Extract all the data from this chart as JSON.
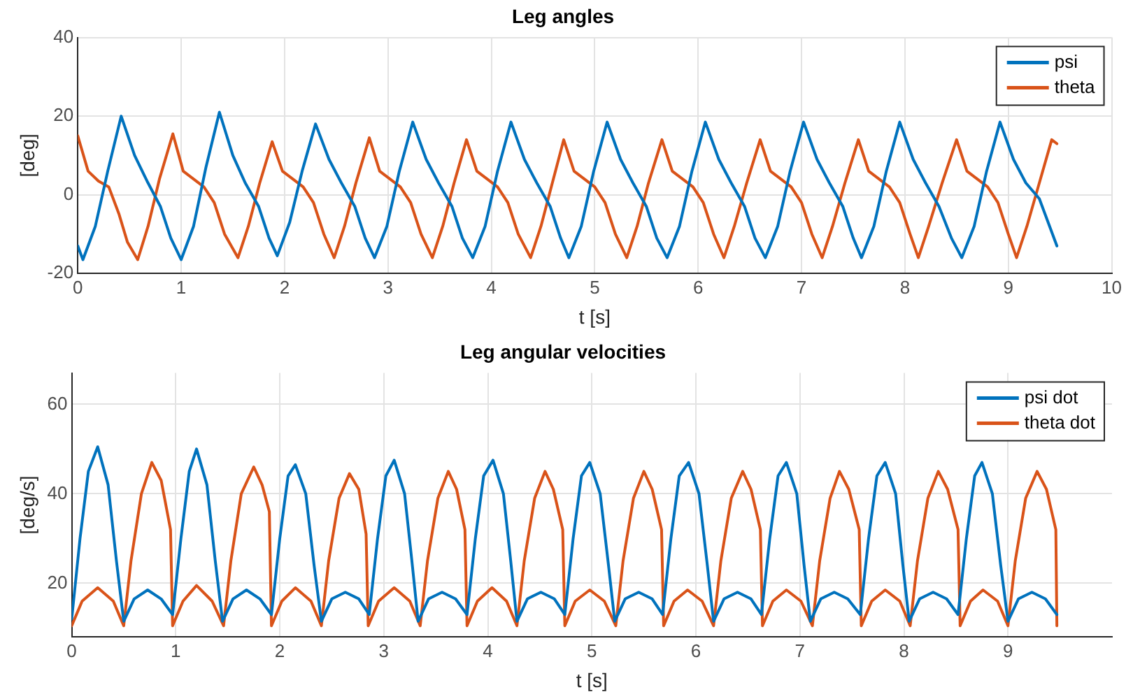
{
  "chart_data": [
    {
      "type": "line",
      "title": "Leg angles",
      "xlabel": "t [s]",
      "ylabel": "[deg]",
      "xlim": [
        0,
        10
      ],
      "xticks": [
        0,
        1,
        2,
        3,
        4,
        5,
        6,
        7,
        8,
        9,
        10
      ],
      "ylim": [
        -20,
        40
      ],
      "yticks": [
        -20,
        0,
        20,
        40
      ],
      "grid": true,
      "legend": "top right",
      "series": [
        {
          "name": "psi",
          "color": "#0072bd",
          "x": [
            0,
            0.05,
            0.17,
            0.29,
            0.42,
            0.55,
            0.67,
            0.8,
            0.9,
            1.0,
            1.12,
            1.24,
            1.37,
            1.5,
            1.62,
            1.75,
            1.85,
            1.93,
            2.05,
            2.17,
            2.3,
            2.43,
            2.55,
            2.68,
            2.78,
            2.87,
            2.99,
            3.11,
            3.24,
            3.37,
            3.49,
            3.62,
            3.72,
            3.82,
            3.94,
            4.06,
            4.19,
            4.32,
            4.44,
            4.57,
            4.67,
            4.75,
            4.87,
            4.99,
            5.12,
            5.25,
            5.37,
            5.5,
            5.6,
            5.7,
            5.82,
            5.94,
            6.07,
            6.2,
            6.32,
            6.45,
            6.55,
            6.65,
            6.77,
            6.89,
            7.02,
            7.15,
            7.27,
            7.4,
            7.5,
            7.58,
            7.7,
            7.82,
            7.95,
            8.08,
            8.2,
            8.33,
            8.45,
            8.55,
            8.67,
            8.79,
            8.92,
            9.05,
            9.17,
            9.3,
            9.47
          ],
          "values": [
            -13,
            -16.5,
            -8,
            6,
            20,
            10,
            3.5,
            -3,
            -11,
            -16.5,
            -8,
            7,
            21,
            10,
            3,
            -3,
            -11,
            -15.5,
            -7,
            6,
            18,
            9,
            3,
            -3,
            -11,
            -16,
            -8,
            6,
            18.5,
            9,
            3,
            -3,
            -11,
            -16,
            -8,
            6,
            18.5,
            9,
            3,
            -3,
            -11,
            -16,
            -8,
            6,
            18.5,
            9,
            3,
            -3,
            -11,
            -16,
            -8,
            6,
            18.5,
            9,
            3,
            -3,
            -11,
            -16,
            -8,
            6,
            18.5,
            9,
            3,
            -3,
            -11,
            -16,
            -8,
            6,
            18.5,
            9,
            3,
            -3,
            -11,
            -16,
            -8,
            6,
            18.5,
            9,
            3,
            -1,
            -13
          ]
        },
        {
          "name": "theta",
          "color": "#d95319",
          "x": [
            0,
            0.1,
            0.2,
            0.3,
            0.4,
            0.48,
            0.58,
            0.68,
            0.79,
            0.92,
            1.02,
            1.12,
            1.22,
            1.32,
            1.42,
            1.55,
            1.65,
            1.76,
            1.88,
            1.98,
            2.08,
            2.18,
            2.28,
            2.38,
            2.48,
            2.58,
            2.69,
            2.82,
            2.92,
            3.02,
            3.12,
            3.22,
            3.32,
            3.43,
            3.53,
            3.64,
            3.76,
            3.86,
            3.96,
            4.06,
            4.16,
            4.26,
            4.38,
            4.48,
            4.59,
            4.7,
            4.8,
            4.9,
            5.0,
            5.1,
            5.2,
            5.31,
            5.41,
            5.52,
            5.65,
            5.75,
            5.85,
            5.95,
            6.05,
            6.15,
            6.25,
            6.35,
            6.47,
            6.6,
            6.7,
            6.8,
            6.9,
            7.0,
            7.1,
            7.2,
            7.3,
            7.42,
            7.55,
            7.65,
            7.75,
            7.85,
            7.95,
            8.05,
            8.13,
            8.23,
            8.36,
            8.5,
            8.6,
            8.7,
            8.8,
            8.9,
            9.0,
            9.08,
            9.18,
            9.3,
            9.42,
            9.47
          ],
          "values": [
            15,
            6,
            3.5,
            2,
            -5,
            -12,
            -16.5,
            -8,
            4,
            15.5,
            6,
            4,
            2,
            -2,
            -10,
            -16,
            -8,
            3,
            13.5,
            6,
            4,
            2,
            -2,
            -10,
            -16,
            -8,
            3,
            14.5,
            6,
            4,
            2,
            -2,
            -10,
            -16,
            -8,
            3,
            14,
            6,
            4,
            2,
            -2,
            -10,
            -16,
            -8,
            3,
            14,
            6,
            4,
            2,
            -2,
            -10,
            -16,
            -8,
            3,
            14,
            6,
            4,
            2,
            -2,
            -10,
            -16,
            -8,
            3,
            14,
            6,
            4,
            2,
            -2,
            -10,
            -16,
            -8,
            3,
            14,
            6,
            4,
            2,
            -2,
            -10,
            -16,
            -8,
            3,
            14,
            6,
            4,
            2,
            -2,
            -10,
            -16,
            -8,
            3,
            14,
            13
          ]
        }
      ]
    },
    {
      "type": "line",
      "title": "Leg angular velocities",
      "xlabel": "t [s]",
      "ylabel": "[deg/s]",
      "xlim": [
        0,
        10
      ],
      "xticks": [
        0,
        1,
        2,
        3,
        4,
        5,
        6,
        7,
        8,
        9
      ],
      "ylim": [
        8,
        67
      ],
      "yticks": [
        20,
        40,
        60
      ],
      "grid": true,
      "legend": "top right",
      "series": [
        {
          "name": "psi dot",
          "color": "#0072bd",
          "x": [
            0,
            0.08,
            0.16,
            0.25,
            0.35,
            0.43,
            0.5,
            0.6,
            0.73,
            0.86,
            0.97,
            1.05,
            1.13,
            1.2,
            1.3,
            1.38,
            1.45,
            1.55,
            1.68,
            1.81,
            1.92,
            2.0,
            2.08,
            2.15,
            2.25,
            2.33,
            2.4,
            2.5,
            2.63,
            2.76,
            2.86,
            2.94,
            3.02,
            3.1,
            3.2,
            3.27,
            3.33,
            3.43,
            3.56,
            3.69,
            3.8,
            3.88,
            3.96,
            4.05,
            4.15,
            4.22,
            4.28,
            4.38,
            4.51,
            4.64,
            4.74,
            4.82,
            4.9,
            4.98,
            5.08,
            5.16,
            5.22,
            5.32,
            5.45,
            5.58,
            5.68,
            5.76,
            5.84,
            5.93,
            6.03,
            6.11,
            6.17,
            6.27,
            6.4,
            6.53,
            6.63,
            6.71,
            6.79,
            6.87,
            6.97,
            7.04,
            7.1,
            7.2,
            7.33,
            7.46,
            7.58,
            7.66,
            7.74,
            7.82,
            7.92,
            7.99,
            8.05,
            8.15,
            8.28,
            8.41,
            8.52,
            8.6,
            8.68,
            8.75,
            8.85,
            8.93,
            9.0,
            9.1,
            9.23,
            9.36,
            9.47
          ],
          "values": [
            12,
            30,
            45,
            50.5,
            42,
            25,
            11.5,
            16.5,
            18.5,
            16.5,
            13,
            30,
            45,
            50,
            42,
            25,
            11.5,
            16.5,
            18.5,
            16.5,
            13,
            30,
            44,
            46.5,
            40,
            24,
            11.5,
            16.5,
            18,
            16.5,
            13,
            30,
            44,
            47.5,
            40,
            25,
            11.5,
            16.5,
            18,
            16.5,
            13,
            30,
            44,
            47.5,
            40,
            25,
            11.5,
            16.5,
            18,
            16.5,
            13,
            30,
            44,
            47,
            40,
            24,
            11.5,
            16.5,
            18,
            16.5,
            13,
            30,
            44,
            47,
            40,
            24,
            11.5,
            16.5,
            18,
            16.5,
            13,
            30,
            44,
            47,
            40,
            24,
            11.5,
            16.5,
            18,
            16.5,
            13,
            30,
            44,
            47,
            40,
            24,
            11.5,
            16.5,
            18,
            16.5,
            13,
            30,
            44,
            47,
            40,
            24,
            11.5,
            16.5,
            18,
            16.5,
            13
          ]
        },
        {
          "name": "theta dot",
          "color": "#d95319",
          "x": [
            0,
            0.1,
            0.25,
            0.4,
            0.5,
            0.57,
            0.67,
            0.77,
            0.86,
            0.95,
            0.97,
            1.07,
            1.2,
            1.35,
            1.46,
            1.53,
            1.63,
            1.75,
            1.83,
            1.9,
            1.92,
            2.02,
            2.15,
            2.3,
            2.4,
            2.47,
            2.57,
            2.67,
            2.76,
            2.83,
            2.85,
            2.95,
            3.1,
            3.25,
            3.35,
            3.42,
            3.52,
            3.62,
            3.7,
            3.78,
            3.8,
            3.9,
            4.04,
            4.18,
            4.28,
            4.35,
            4.45,
            4.55,
            4.63,
            4.72,
            4.74,
            4.84,
            4.98,
            5.12,
            5.23,
            5.3,
            5.4,
            5.5,
            5.58,
            5.67,
            5.69,
            5.79,
            5.92,
            6.06,
            6.17,
            6.24,
            6.34,
            6.45,
            6.53,
            6.62,
            6.64,
            6.74,
            6.87,
            7.01,
            7.12,
            7.19,
            7.29,
            7.38,
            7.47,
            7.57,
            7.59,
            7.69,
            7.82,
            7.96,
            8.06,
            8.13,
            8.23,
            8.33,
            8.42,
            8.52,
            8.54,
            8.64,
            8.76,
            8.9,
            9.0,
            9.07,
            9.17,
            9.28,
            9.37,
            9.46,
            9.47
          ],
          "values": [
            10.5,
            16,
            19,
            16,
            10.5,
            25,
            40,
            47,
            43,
            32,
            10.5,
            16,
            19.5,
            16,
            10.5,
            25,
            40,
            46,
            42,
            36,
            10.5,
            16,
            19,
            16,
            10.5,
            25,
            39,
            44.5,
            41,
            31,
            10.5,
            16,
            19,
            16,
            10.5,
            25,
            39,
            45,
            41,
            32,
            10.5,
            16,
            19,
            16,
            10.5,
            25,
            39,
            45,
            41,
            32,
            10.5,
            16,
            18.5,
            16,
            10.5,
            25,
            39,
            45,
            41,
            32,
            10.5,
            16,
            18.5,
            16,
            10.5,
            25,
            39,
            45,
            41,
            32,
            10.5,
            16,
            18.5,
            16,
            10.5,
            25,
            39,
            45,
            41,
            32,
            10.5,
            16,
            18.5,
            16,
            10.5,
            25,
            39,
            45,
            41,
            32,
            10.5,
            16,
            18.5,
            16,
            10.5,
            25,
            39,
            45,
            41,
            32,
            10.5
          ]
        }
      ]
    }
  ]
}
